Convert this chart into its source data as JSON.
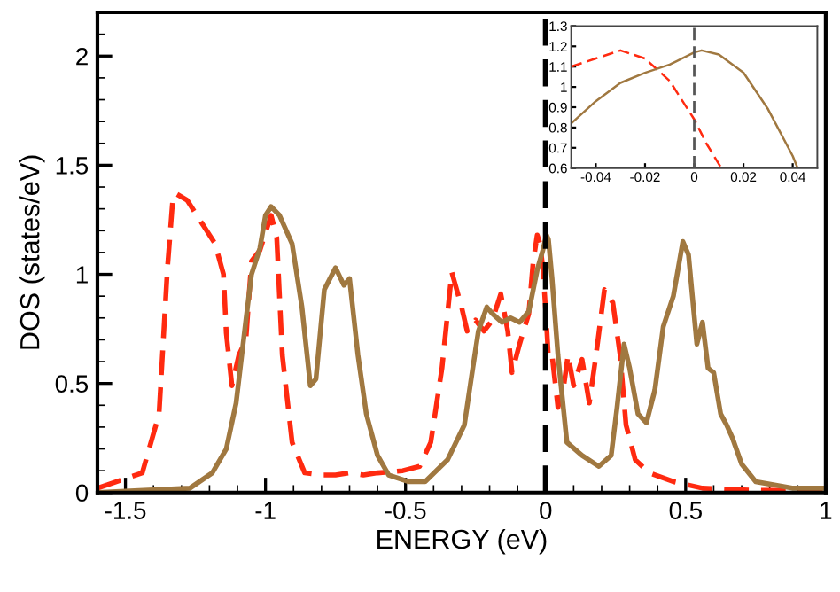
{
  "chart_data": [
    {
      "type": "line",
      "xlabel": "ENERGY (eV)",
      "ylabel": "DOS (states/eV)",
      "xlim": [
        -1.6,
        1
      ],
      "ylim": [
        0,
        2.2
      ],
      "xticks": [
        {
          "value": -1.5,
          "label": "-1.5"
        },
        {
          "value": -1,
          "label": "-1"
        },
        {
          "value": -0.5,
          "label": "-0.5"
        },
        0,
        0.5,
        1
      ],
      "yticks": [
        0,
        0.5,
        1,
        1.5,
        2
      ],
      "grid": false,
      "legend": false,
      "ref_lines": [
        {
          "axis": "x",
          "value": 0,
          "color": "#000000",
          "line_style": "dashed"
        }
      ],
      "series": [
        {
          "color": "#ff2a10",
          "line_style": "dashed",
          "x": [
            -1.6,
            -1.44,
            -1.38,
            -1.35,
            -1.33,
            -1.32,
            -1.28,
            -1.22,
            -1.18,
            -1.15,
            -1.14,
            -1.12,
            -1.095,
            -1.07,
            -1.05,
            -1.02,
            -1.0,
            -0.98,
            -0.96,
            -0.94,
            -0.905,
            -0.86,
            -0.8,
            -0.75,
            -0.7,
            -0.65,
            -0.6,
            -0.51,
            -0.45,
            -0.41,
            -0.37,
            -0.335,
            -0.3,
            -0.28,
            -0.25,
            -0.22,
            -0.19,
            -0.16,
            -0.135,
            -0.12,
            -0.093,
            -0.06,
            -0.045,
            -0.03,
            -0.02,
            -0.01,
            0,
            0.01,
            0.023,
            0.044,
            0.065,
            0.08,
            0.1,
            0.13,
            0.156,
            0.18,
            0.21,
            0.24,
            0.266,
            0.287,
            0.32,
            0.37,
            0.456,
            0.56,
            0.75,
            1.0
          ],
          "values": [
            0.02,
            0.09,
            0.36,
            1.03,
            1.36,
            1.37,
            1.34,
            1.22,
            1.14,
            1.0,
            0.73,
            0.49,
            0.63,
            0.7,
            1.06,
            1.11,
            1.19,
            1.27,
            1.17,
            0.63,
            0.23,
            0.09,
            0.08,
            0.08,
            0.09,
            0.08,
            0.09,
            0.1,
            0.12,
            0.23,
            0.57,
            1.01,
            0.85,
            0.74,
            0.79,
            0.74,
            0.79,
            0.91,
            0.74,
            0.55,
            0.68,
            0.82,
            1.05,
            1.18,
            1.14,
            1.03,
            0.84,
            0.62,
            0.63,
            0.39,
            0.49,
            0.63,
            0.49,
            0.61,
            0.41,
            0.63,
            0.93,
            0.87,
            0.63,
            0.31,
            0.15,
            0.09,
            0.05,
            0.02,
            0.01,
            0.01
          ]
        },
        {
          "color": "#a07840",
          "line_style": "solid",
          "x": [
            -1.6,
            -1.27,
            -1.19,
            -1.14,
            -1.105,
            -1.07,
            -1.05,
            -1.02,
            -1.0,
            -0.98,
            -0.95,
            -0.905,
            -0.87,
            -0.84,
            -0.82,
            -0.79,
            -0.75,
            -0.72,
            -0.7,
            -0.67,
            -0.64,
            -0.6,
            -0.56,
            -0.49,
            -0.43,
            -0.35,
            -0.29,
            -0.26,
            -0.24,
            -0.21,
            -0.19,
            -0.156,
            -0.125,
            -0.093,
            -0.06,
            -0.03,
            -0.01,
            0.003,
            0.01,
            0.023,
            0.044,
            0.076,
            0.13,
            0.19,
            0.234,
            0.255,
            0.28,
            0.3,
            0.33,
            0.36,
            0.39,
            0.42,
            0.456,
            0.49,
            0.51,
            0.54,
            0.56,
            0.58,
            0.6,
            0.625,
            0.646,
            0.667,
            0.7,
            0.75,
            0.88,
            1.0
          ],
          "values": [
            0.0,
            0.02,
            0.09,
            0.2,
            0.41,
            0.79,
            1.0,
            1.12,
            1.27,
            1.31,
            1.27,
            1.14,
            0.85,
            0.49,
            0.52,
            0.93,
            1.03,
            0.95,
            0.98,
            0.63,
            0.36,
            0.17,
            0.08,
            0.05,
            0.05,
            0.15,
            0.31,
            0.57,
            0.74,
            0.85,
            0.82,
            0.78,
            0.8,
            0.78,
            0.83,
            1.02,
            1.11,
            1.18,
            1.16,
            0.98,
            0.63,
            0.23,
            0.17,
            0.12,
            0.17,
            0.39,
            0.68,
            0.57,
            0.36,
            0.32,
            0.47,
            0.76,
            0.9,
            1.15,
            1.09,
            0.68,
            0.78,
            0.57,
            0.55,
            0.36,
            0.31,
            0.25,
            0.13,
            0.05,
            0.02,
            0.02
          ]
        }
      ]
    },
    {
      "type": "line",
      "xlim": [
        -0.05,
        0.05
      ],
      "ylim": [
        0.6,
        1.3
      ],
      "xticks": [
        {
          "value": -0.04,
          "label": "-0.04"
        },
        {
          "value": -0.02,
          "label": "-0.02"
        },
        0,
        0.02,
        0.04
      ],
      "yticks": [
        0.6,
        0.7,
        0.8,
        0.9,
        1,
        1.1,
        1.2,
        1.3
      ],
      "grid": false,
      "legend": false,
      "ref_lines": [
        {
          "axis": "x",
          "value": 0,
          "color": "#555555",
          "line_style": "dashed"
        }
      ],
      "series": [
        {
          "color": "#ff2a10",
          "line_style": "dashed",
          "x": [
            -0.05,
            -0.04,
            -0.03,
            -0.02,
            -0.01,
            0,
            0.005,
            0.01,
            0.011
          ],
          "values": [
            1.1,
            1.14,
            1.18,
            1.14,
            1.03,
            0.84,
            0.72,
            0.62,
            0.6
          ]
        },
        {
          "color": "#a07840",
          "line_style": "solid",
          "x": [
            -0.05,
            -0.04,
            -0.03,
            -0.02,
            -0.01,
            0,
            0.003,
            0.01,
            0.02,
            0.03,
            0.04,
            0.042
          ],
          "values": [
            0.82,
            0.93,
            1.02,
            1.07,
            1.11,
            1.17,
            1.18,
            1.16,
            1.07,
            0.89,
            0.66,
            0.6
          ]
        }
      ]
    }
  ]
}
